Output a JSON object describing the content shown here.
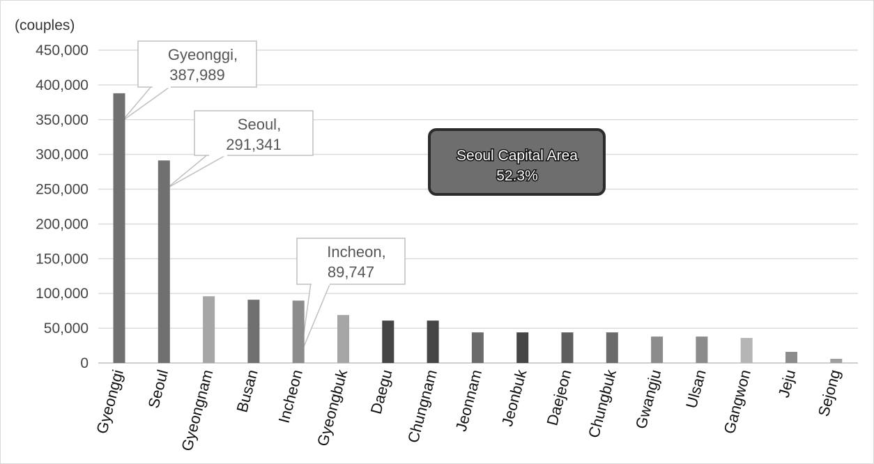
{
  "chart_data": {
    "type": "bar",
    "unit_label": "(couples)",
    "categories": [
      "Gyeonggi",
      "Seoul",
      "Gyeongnam",
      "Busan",
      "Incheon",
      "Gyeongbuk",
      "Daegu",
      "Chungnam",
      "Jeonnam",
      "Jeonbuk",
      "Daejeon",
      "Chungbuk",
      "Gwangju",
      "Ulsan",
      "Gangwon",
      "Jeju",
      "Sejong"
    ],
    "values": [
      387989,
      291341,
      96000,
      91000,
      89747,
      69000,
      61000,
      61000,
      44000,
      44000,
      44000,
      44000,
      38000,
      38000,
      36000,
      16000,
      6000
    ],
    "bar_colors": [
      "#707070",
      "#707070",
      "#a6a6a6",
      "#707070",
      "#8c8c8c",
      "#a6a6a6",
      "#454545",
      "#454545",
      "#6b6b6b",
      "#454545",
      "#5e5e5e",
      "#6b6b6b",
      "#8c8c8c",
      "#8c8c8c",
      "#b5b5b5",
      "#8c8c8c",
      "#9e9e9e"
    ],
    "ylim": [
      0,
      450000
    ],
    "yticks": [
      "0",
      "50,000",
      "100,000",
      "150,000",
      "200,000",
      "250,000",
      "300,000",
      "350,000",
      "400,000",
      "450,000"
    ],
    "ytick_values": [
      0,
      50000,
      100000,
      150000,
      200000,
      250000,
      300000,
      350000,
      400000,
      450000
    ],
    "grid": true,
    "callouts": [
      {
        "category": "Gyeonggi",
        "line1": "Gyeonggi,",
        "line2": "387,989"
      },
      {
        "category": "Seoul",
        "line1": "Seoul,",
        "line2": "291,341"
      },
      {
        "category": "Incheon",
        "line1": "Incheon,",
        "line2": "89,747"
      }
    ],
    "summary_box": {
      "line1": "Seoul Capital Area",
      "line2": "52.3%"
    }
  }
}
